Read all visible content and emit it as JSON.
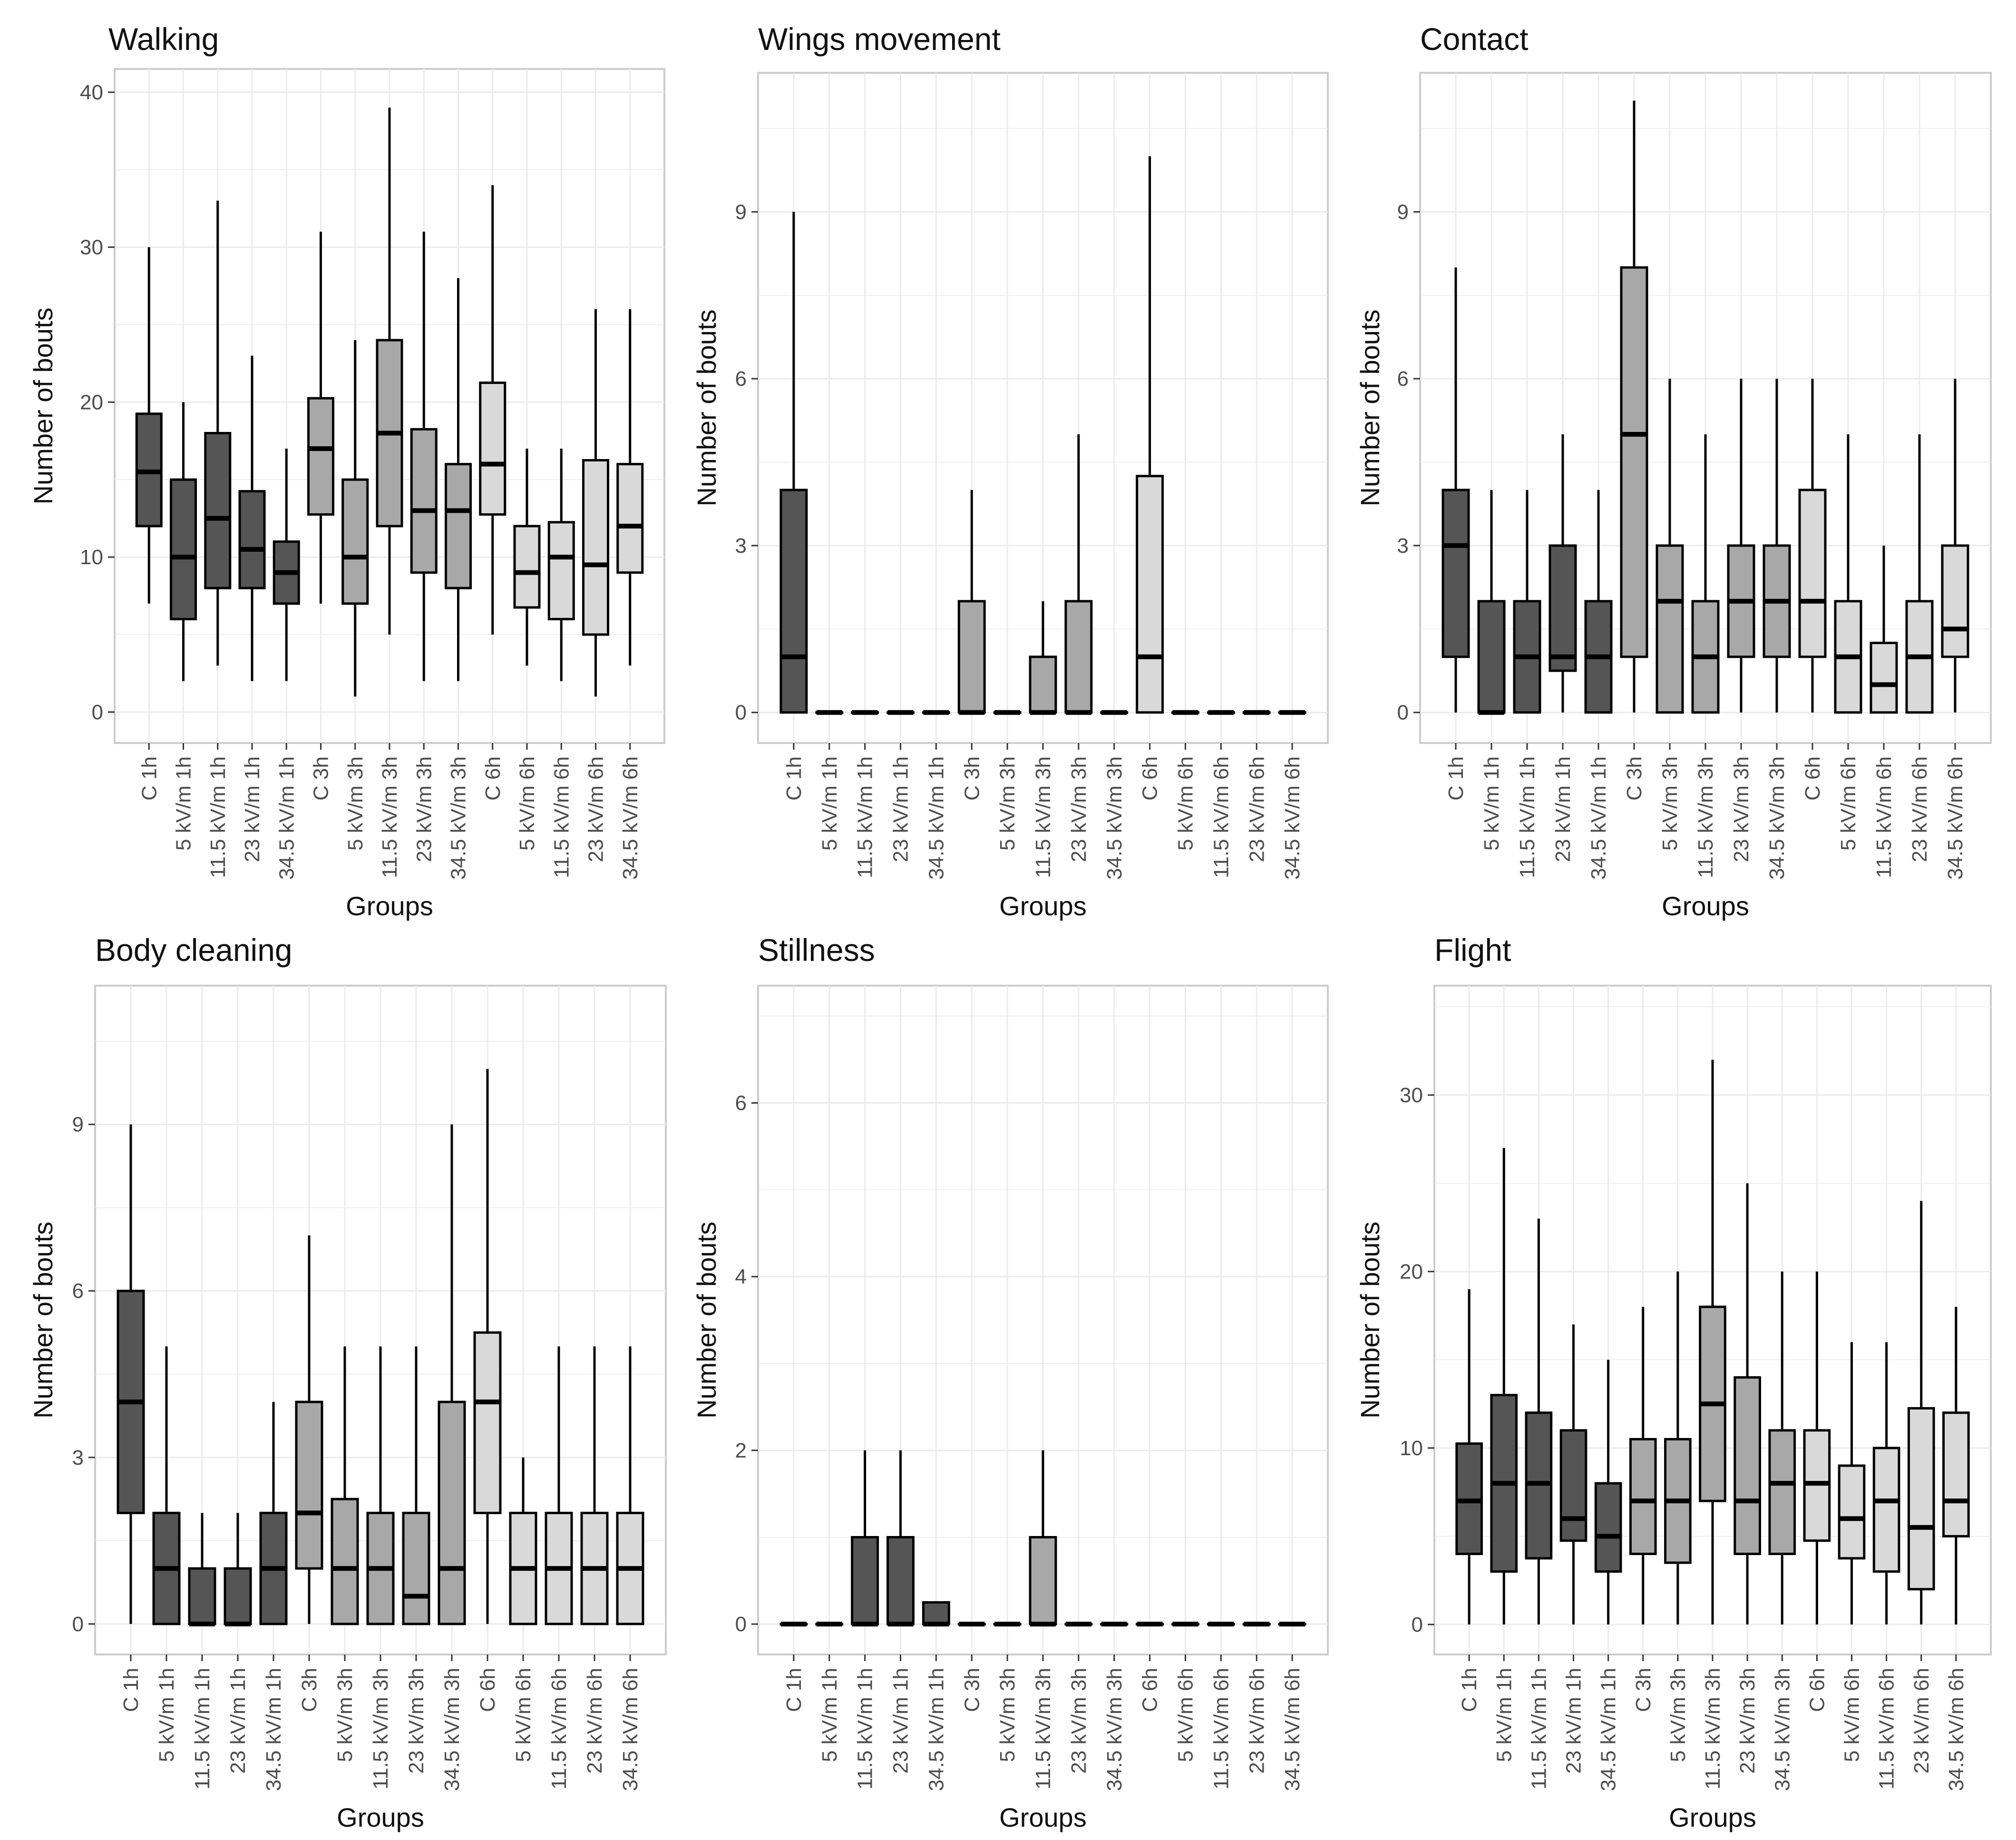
{
  "groups_label": "Groups",
  "colors": {
    "1h": "#555555",
    "3h": "#a8a8a8",
    "6h": "#d9d9d9",
    "median": "#000000",
    "grid": "#ebebeb",
    "panel_border": "#cccccc"
  },
  "chart_data": [
    {
      "type": "boxplot",
      "title": "Walking",
      "xlabel": "Groups",
      "ylabel": "Number of bouts",
      "ylim": [
        -2,
        41.5
      ],
      "yticks": [
        0,
        10,
        20,
        30,
        40
      ],
      "grid": true,
      "categories": [
        "C 1h",
        "5 kV/m 1h",
        "11.5 kV/m 1h",
        "23 kV/m 1h",
        "34.5 kV/m 1h",
        "C 3h",
        "5 kV/m 3h",
        "11.5 kV/m 3h",
        "23 kV/m 3h",
        "34.5 kV/m 3h",
        "C 6h",
        "5 kV/m 6h",
        "11.5 kV/m 6h",
        "23 kV/m 6h",
        "34.5 kV/m 6h"
      ],
      "series": [
        {
          "min": 7,
          "q1": 12,
          "median": 15.5,
          "q3": 19.25,
          "max": 30
        },
        {
          "min": 2,
          "q1": 6,
          "median": 10,
          "q3": 15,
          "max": 20
        },
        {
          "min": 3,
          "q1": 8,
          "median": 12.5,
          "q3": 18,
          "max": 33
        },
        {
          "min": 2,
          "q1": 8,
          "median": 10.5,
          "q3": 14.25,
          "max": 23
        },
        {
          "min": 2,
          "q1": 7,
          "median": 9,
          "q3": 11,
          "max": 17
        },
        {
          "min": 7,
          "q1": 12.75,
          "median": 17,
          "q3": 20.25,
          "max": 31
        },
        {
          "min": 1,
          "q1": 7,
          "median": 10,
          "q3": 15,
          "max": 24
        },
        {
          "min": 5,
          "q1": 12,
          "median": 18,
          "q3": 24,
          "max": 39
        },
        {
          "min": 2,
          "q1": 9,
          "median": 13,
          "q3": 18.25,
          "max": 31
        },
        {
          "min": 2,
          "q1": 8,
          "median": 13,
          "q3": 16,
          "max": 28
        },
        {
          "min": 5,
          "q1": 12.75,
          "median": 16,
          "q3": 21.25,
          "max": 34
        },
        {
          "min": 3,
          "q1": 6.75,
          "median": 9,
          "q3": 12,
          "max": 17
        },
        {
          "min": 2,
          "q1": 6,
          "median": 10,
          "q3": 12.25,
          "max": 17
        },
        {
          "min": 1,
          "q1": 5,
          "median": 9.5,
          "q3": 16.25,
          "max": 26
        },
        {
          "min": 3,
          "q1": 9,
          "median": 12,
          "q3": 16,
          "max": 26
        }
      ]
    },
    {
      "type": "boxplot",
      "title": "Wings movement",
      "xlabel": "Groups",
      "ylabel": "Number of bouts",
      "ylim": [
        -0.55,
        11.5
      ],
      "yticks": [
        0,
        3,
        6,
        9
      ],
      "grid": true,
      "categories": [
        "C 1h",
        "5 kV/m 1h",
        "11.5 kV/m 1h",
        "23 kV/m 1h",
        "34.5 kV/m 1h",
        "C 3h",
        "5 kV/m 3h",
        "11.5 kV/m 3h",
        "23 kV/m 3h",
        "34.5 kV/m 3h",
        "C 6h",
        "5 kV/m 6h",
        "11.5 kV/m 6h",
        "23 kV/m 6h",
        "34.5 kV/m 6h"
      ],
      "series": [
        {
          "min": 0,
          "q1": 0,
          "median": 1,
          "q3": 4,
          "max": 9
        },
        {
          "min": 0,
          "q1": 0,
          "median": 0,
          "q3": 0,
          "max": 0
        },
        {
          "min": 0,
          "q1": 0,
          "median": 0,
          "q3": 0,
          "max": 0
        },
        {
          "min": 0,
          "q1": 0,
          "median": 0,
          "q3": 0,
          "max": 0
        },
        {
          "min": 0,
          "q1": 0,
          "median": 0,
          "q3": 0,
          "max": 0
        },
        {
          "min": 0,
          "q1": 0,
          "median": 0,
          "q3": 2,
          "max": 4
        },
        {
          "min": 0,
          "q1": 0,
          "median": 0,
          "q3": 0,
          "max": 0
        },
        {
          "min": 0,
          "q1": 0,
          "median": 0,
          "q3": 1,
          "max": 2
        },
        {
          "min": 0,
          "q1": 0,
          "median": 0,
          "q3": 2,
          "max": 5
        },
        {
          "min": 0,
          "q1": 0,
          "median": 0,
          "q3": 0,
          "max": 0
        },
        {
          "min": 0,
          "q1": 0,
          "median": 1,
          "q3": 4.25,
          "max": 10
        },
        {
          "min": 0,
          "q1": 0,
          "median": 0,
          "q3": 0,
          "max": 0
        },
        {
          "min": 0,
          "q1": 0,
          "median": 0,
          "q3": 0,
          "max": 0
        },
        {
          "min": 0,
          "q1": 0,
          "median": 0,
          "q3": 0,
          "max": 0
        },
        {
          "min": 0,
          "q1": 0,
          "median": 0,
          "q3": 0,
          "max": 0
        }
      ]
    },
    {
      "type": "boxplot",
      "title": "Contact",
      "xlabel": "Groups",
      "ylabel": "Number of bouts",
      "ylim": [
        -0.55,
        11.5
      ],
      "yticks": [
        0,
        3,
        6,
        9
      ],
      "grid": true,
      "categories": [
        "C 1h",
        "5 kV/m 1h",
        "11.5 kV/m 1h",
        "23 kV/m 1h",
        "34.5 kV/m 1h",
        "C 3h",
        "5 kV/m 3h",
        "11.5 kV/m 3h",
        "23 kV/m 3h",
        "34.5 kV/m 3h",
        "C 6h",
        "5 kV/m 6h",
        "11.5 kV/m 6h",
        "23 kV/m 6h",
        "34.5 kV/m 6h"
      ],
      "series": [
        {
          "min": 0,
          "q1": 1,
          "median": 3,
          "q3": 4,
          "max": 8
        },
        {
          "min": 0,
          "q1": 0,
          "median": 0,
          "q3": 2,
          "max": 4
        },
        {
          "min": 0,
          "q1": 0,
          "median": 1,
          "q3": 2,
          "max": 4
        },
        {
          "min": 0,
          "q1": 0.75,
          "median": 1,
          "q3": 3,
          "max": 5
        },
        {
          "min": 0,
          "q1": 0,
          "median": 1,
          "q3": 2,
          "max": 4
        },
        {
          "min": 0,
          "q1": 1,
          "median": 5,
          "q3": 8,
          "max": 11
        },
        {
          "min": 0,
          "q1": 0,
          "median": 2,
          "q3": 3,
          "max": 6
        },
        {
          "min": 0,
          "q1": 0,
          "median": 1,
          "q3": 2,
          "max": 5
        },
        {
          "min": 0,
          "q1": 1,
          "median": 2,
          "q3": 3,
          "max": 6
        },
        {
          "min": 0,
          "q1": 1,
          "median": 2,
          "q3": 3,
          "max": 6
        },
        {
          "min": 0,
          "q1": 1,
          "median": 2,
          "q3": 4,
          "max": 6
        },
        {
          "min": 0,
          "q1": 0,
          "median": 1,
          "q3": 2,
          "max": 5
        },
        {
          "min": 0,
          "q1": 0,
          "median": 0.5,
          "q3": 1.25,
          "max": 3
        },
        {
          "min": 0,
          "q1": 0,
          "median": 1,
          "q3": 2,
          "max": 5
        },
        {
          "min": 0,
          "q1": 1,
          "median": 1.5,
          "q3": 3,
          "max": 6
        }
      ]
    },
    {
      "type": "boxplot",
      "title": "Body cleaning",
      "xlabel": "Groups",
      "ylabel": "Number of bouts",
      "ylim": [
        -0.55,
        11.5
      ],
      "yticks": [
        0,
        3,
        6,
        9
      ],
      "grid": true,
      "categories": [
        "C 1h",
        "5 kV/m 1h",
        "11.5 kV/m 1h",
        "23 kV/m 1h",
        "34.5 kV/m 1h",
        "C 3h",
        "5 kV/m 3h",
        "11.5 kV/m 3h",
        "23 kV/m 3h",
        "34.5 kV/m 3h",
        "C 6h",
        "5 kV/m 6h",
        "11.5 kV/m 6h",
        "23 kV/m 6h",
        "34.5 kV/m 6h"
      ],
      "series": [
        {
          "min": 0,
          "q1": 2,
          "median": 4,
          "q3": 6,
          "max": 9
        },
        {
          "min": 0,
          "q1": 0,
          "median": 1,
          "q3": 2,
          "max": 5
        },
        {
          "min": 0,
          "q1": 0,
          "median": 0,
          "q3": 1,
          "max": 2
        },
        {
          "min": 0,
          "q1": 0,
          "median": 0,
          "q3": 1,
          "max": 2
        },
        {
          "min": 0,
          "q1": 0,
          "median": 1,
          "q3": 2,
          "max": 4
        },
        {
          "min": 0,
          "q1": 1,
          "median": 2,
          "q3": 4,
          "max": 7
        },
        {
          "min": 0,
          "q1": 0,
          "median": 1,
          "q3": 2.25,
          "max": 5
        },
        {
          "min": 0,
          "q1": 0,
          "median": 1,
          "q3": 2,
          "max": 5
        },
        {
          "min": 0,
          "q1": 0,
          "median": 0.5,
          "q3": 2,
          "max": 5
        },
        {
          "min": 0,
          "q1": 0,
          "median": 1,
          "q3": 4,
          "max": 9
        },
        {
          "min": 0,
          "q1": 2,
          "median": 4,
          "q3": 5.25,
          "max": 10
        },
        {
          "min": 0,
          "q1": 0,
          "median": 1,
          "q3": 2,
          "max": 3
        },
        {
          "min": 0,
          "q1": 0,
          "median": 1,
          "q3": 2,
          "max": 5
        },
        {
          "min": 0,
          "q1": 0,
          "median": 1,
          "q3": 2,
          "max": 5
        },
        {
          "min": 0,
          "q1": 0,
          "median": 1,
          "q3": 2,
          "max": 5
        }
      ]
    },
    {
      "type": "boxplot",
      "title": "Stillness",
      "xlabel": "Groups",
      "ylabel": "Number of bouts",
      "ylim": [
        -0.35,
        7.35
      ],
      "yticks": [
        0,
        2,
        4,
        6
      ],
      "grid": true,
      "categories": [
        "C 1h",
        "5 kV/m 1h",
        "11.5 kV/m 1h",
        "23 kV/m 1h",
        "34.5 kV/m 1h",
        "C 3h",
        "5 kV/m 3h",
        "11.5 kV/m 3h",
        "23 kV/m 3h",
        "34.5 kV/m 3h",
        "C 6h",
        "5 kV/m 6h",
        "11.5 kV/m 6h",
        "23 kV/m 6h",
        "34.5 kV/m 6h"
      ],
      "series": [
        {
          "min": 0,
          "q1": 0,
          "median": 0,
          "q3": 0,
          "max": 0
        },
        {
          "min": 0,
          "q1": 0,
          "median": 0,
          "q3": 0,
          "max": 0
        },
        {
          "min": 0,
          "q1": 0,
          "median": 0,
          "q3": 1,
          "max": 2
        },
        {
          "min": 0,
          "q1": 0,
          "median": 0,
          "q3": 1,
          "max": 2
        },
        {
          "min": 0,
          "q1": 0,
          "median": 0,
          "q3": 0.25,
          "max": 0.25
        },
        {
          "min": 0,
          "q1": 0,
          "median": 0,
          "q3": 0,
          "max": 0
        },
        {
          "min": 0,
          "q1": 0,
          "median": 0,
          "q3": 0,
          "max": 0
        },
        {
          "min": 0,
          "q1": 0,
          "median": 0,
          "q3": 1,
          "max": 2
        },
        {
          "min": 0,
          "q1": 0,
          "median": 0,
          "q3": 0,
          "max": 0
        },
        {
          "min": 0,
          "q1": 0,
          "median": 0,
          "q3": 0,
          "max": 0
        },
        {
          "min": 0,
          "q1": 0,
          "median": 0,
          "q3": 0,
          "max": 0
        },
        {
          "min": 0,
          "q1": 0,
          "median": 0,
          "q3": 0,
          "max": 0
        },
        {
          "min": 0,
          "q1": 0,
          "median": 0,
          "q3": 0,
          "max": 0
        },
        {
          "min": 0,
          "q1": 0,
          "median": 0,
          "q3": 0,
          "max": 0
        },
        {
          "min": 0,
          "q1": 0,
          "median": 0,
          "q3": 0,
          "max": 0
        }
      ]
    },
    {
      "type": "boxplot",
      "title": "Flight",
      "xlabel": "Groups",
      "ylabel": "Number of bouts",
      "ylim": [
        -1.7,
        36.2
      ],
      "yticks": [
        0,
        10,
        20,
        30
      ],
      "grid": true,
      "categories": [
        "C 1h",
        "5 kV/m 1h",
        "11.5 kV/m 1h",
        "23 kV/m 1h",
        "34.5 kV/m 1h",
        "C 3h",
        "5 kV/m 3h",
        "11.5 kV/m 3h",
        "23 kV/m 3h",
        "34.5 kV/m 3h",
        "C 6h",
        "5 kV/m 6h",
        "11.5 kV/m 6h",
        "23 kV/m 6h",
        "34.5 kV/m 6h"
      ],
      "series": [
        {
          "min": 0,
          "q1": 4,
          "median": 7,
          "q3": 10.25,
          "max": 19
        },
        {
          "min": 0,
          "q1": 3,
          "median": 8,
          "q3": 13,
          "max": 27
        },
        {
          "min": 0,
          "q1": 3.75,
          "median": 8,
          "q3": 12,
          "max": 23
        },
        {
          "min": 0,
          "q1": 4.75,
          "median": 6,
          "q3": 11,
          "max": 17
        },
        {
          "min": 0,
          "q1": 3,
          "median": 5,
          "q3": 8,
          "max": 15
        },
        {
          "min": 0,
          "q1": 4,
          "median": 7,
          "q3": 10.5,
          "max": 18
        },
        {
          "min": 0,
          "q1": 3.5,
          "median": 7,
          "q3": 10.5,
          "max": 20
        },
        {
          "min": 0,
          "q1": 7,
          "median": 12.5,
          "q3": 18,
          "max": 32
        },
        {
          "min": 0,
          "q1": 4,
          "median": 7,
          "q3": 14,
          "max": 25
        },
        {
          "min": 0,
          "q1": 4,
          "median": 8,
          "q3": 11,
          "max": 20
        },
        {
          "min": 0,
          "q1": 4.75,
          "median": 8,
          "q3": 11,
          "max": 20
        },
        {
          "min": 0,
          "q1": 3.75,
          "median": 6,
          "q3": 9,
          "max": 16
        },
        {
          "min": 0,
          "q1": 3,
          "median": 7,
          "q3": 10,
          "max": 16
        },
        {
          "min": 0,
          "q1": 2,
          "median": 5.5,
          "q3": 12.25,
          "max": 24
        },
        {
          "min": 0,
          "q1": 5,
          "median": 7,
          "q3": 12,
          "max": 18
        }
      ]
    }
  ]
}
